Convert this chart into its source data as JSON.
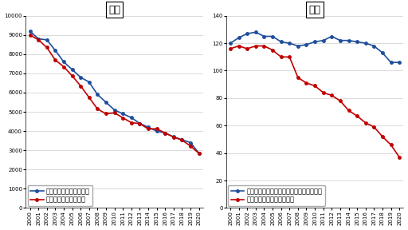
{
  "years": [
    2000,
    2001,
    2002,
    2003,
    2004,
    2005,
    2006,
    2007,
    2008,
    2009,
    2010,
    2011,
    2012,
    2013,
    2014,
    2015,
    2016,
    2017,
    2018,
    2019,
    2020
  ],
  "death_left": {
    "title": "死亡",
    "blue_label": "自賞責・死亡件数（件）",
    "red_label": "警察庁・死者数（人）",
    "blue": [
      9200,
      8800,
      8750,
      8200,
      7600,
      7200,
      6800,
      6550,
      5900,
      5500,
      5100,
      4900,
      4700,
      4400,
      4200,
      4000,
      3900,
      3700,
      3550,
      3400,
      2850
    ],
    "red": [
      9000,
      8750,
      8350,
      7700,
      7350,
      6870,
      6350,
      5750,
      5150,
      4900,
      4950,
      4690,
      4440,
      4390,
      4110,
      4120,
      3900,
      3690,
      3530,
      3220,
      2840
    ],
    "ylim": [
      0,
      10000
    ],
    "yticks": [
      0,
      1000,
      2000,
      3000,
      4000,
      5000,
      6000,
      7000,
      8000,
      9000,
      10000
    ]
  },
  "injury_right": {
    "title": "負傷",
    "blue_label": "自賞責・傷害および後遅障害件数（万件）",
    "red_label": "警察庁・負傷者数（万人）",
    "blue": [
      120,
      124,
      127,
      128,
      125,
      125,
      121,
      120,
      118,
      119,
      121,
      122,
      125,
      122,
      122,
      121,
      120,
      118,
      113,
      106,
      106
    ],
    "red": [
      116,
      118,
      116,
      118,
      118,
      115,
      110,
      110,
      95,
      91,
      89,
      84,
      82,
      78,
      71,
      67,
      62,
      59,
      52,
      46,
      37
    ],
    "ylim": [
      0,
      140
    ],
    "yticks": [
      0,
      20,
      40,
      60,
      80,
      100,
      120,
      140
    ]
  },
  "blue_color": "#1f4e9c",
  "red_color": "#c00000",
  "marker": "o",
  "markersize": 2.5,
  "linewidth": 1.2,
  "bg_color": "#ffffff",
  "grid_color": "#cccccc",
  "title_fontsize": 9,
  "legend_fontsize": 6,
  "tick_fontsize": 5
}
